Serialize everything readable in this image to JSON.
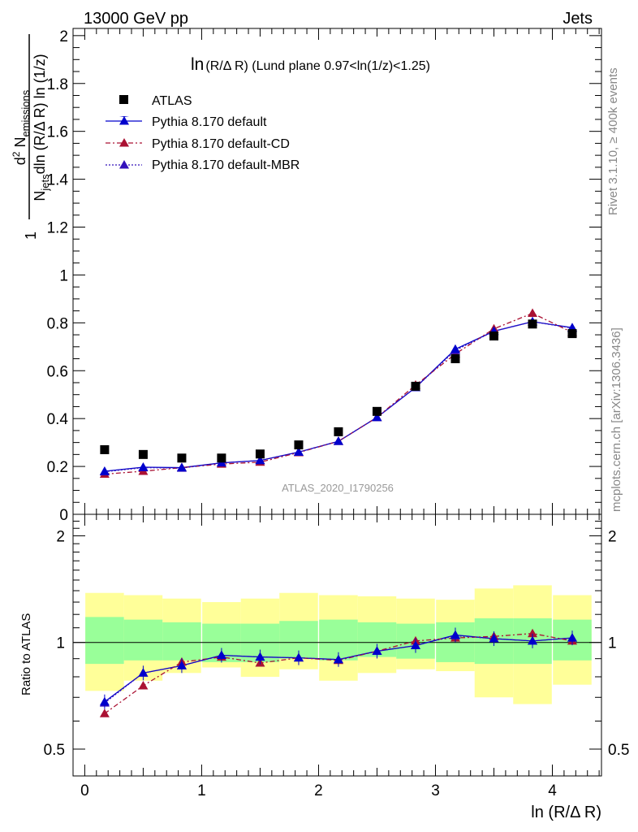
{
  "header": {
    "left": "13000 GeV pp",
    "right": "Jets"
  },
  "side_labels": {
    "top": "Rivet 3.1.10, ≥ 400k events",
    "bottom": "mcplots.cern.ch [arXiv:1306.3436]"
  },
  "watermark": "ATLAS_2020_I1790256",
  "xlabel": "ln (R/Δ R)",
  "colors": {
    "data": "#000000",
    "default": "#0000cc",
    "cd": "#aa1133",
    "mbr": "#3311bb",
    "band_yellow": "#ffff99",
    "band_green": "#99ff99"
  },
  "chart_data": [
    {
      "type": "scatter",
      "panel": "main",
      "title_main": "ln",
      "title_rest": "(R/Δ R) (Lund plane 0.97<ln(1/z)<1.25)",
      "ylabel": "1/N_jets dln (R/Δ R) ln (1/z) · d² N_emissions",
      "xlim": [
        -0.1,
        4.42
      ],
      "ylim": [
        0,
        2.03
      ],
      "y_ticks": [
        "0",
        "0.2",
        "0.4",
        "0.6",
        "0.8",
        "1",
        "1.2",
        "1.4",
        "1.6",
        "1.8",
        "2"
      ],
      "legend_position": "top-left",
      "x": [
        0.17,
        0.5,
        0.83,
        1.17,
        1.5,
        1.83,
        2.17,
        2.5,
        2.83,
        3.17,
        3.5,
        3.83,
        4.17
      ],
      "series": [
        {
          "name": "ATLAS",
          "values": [
            0.27,
            0.25,
            0.235,
            0.235,
            0.252,
            0.29,
            0.345,
            0.43,
            0.535,
            0.65,
            0.745,
            0.795,
            0.755
          ]
        },
        {
          "name": "Pythia 8.170 default",
          "values": [
            0.18,
            0.197,
            0.195,
            0.215,
            0.225,
            0.26,
            0.305,
            0.405,
            0.53,
            0.69,
            0.765,
            0.805,
            0.78
          ]
        },
        {
          "name": "Pythia 8.170 default-CD",
          "values": [
            0.168,
            0.18,
            0.195,
            0.21,
            0.218,
            0.258,
            0.305,
            0.405,
            0.54,
            0.67,
            0.775,
            0.84,
            0.76
          ]
        },
        {
          "name": "Pythia 8.170 default-MBR",
          "values": [
            0.178,
            0.195,
            0.193,
            0.215,
            0.225,
            0.26,
            0.305,
            0.405,
            0.53,
            0.685,
            0.765,
            0.805,
            0.778
          ]
        }
      ]
    },
    {
      "type": "scatter",
      "panel": "ratio",
      "ylabel": "Ratio to ATLAS",
      "xlim": [
        -0.1,
        4.42
      ],
      "ylim": [
        0.42,
        2.3
      ],
      "x_ticks": [
        "0",
        "1",
        "2",
        "3",
        "4"
      ],
      "y_ticks": [
        "0.5",
        "1",
        "2"
      ],
      "x": [
        0.17,
        0.5,
        0.83,
        1.17,
        1.5,
        1.83,
        2.17,
        2.5,
        2.83,
        3.17,
        3.5,
        3.83,
        4.17
      ],
      "band_yellow": [
        [
          0.73,
          1.38
        ],
        [
          0.78,
          1.36
        ],
        [
          0.82,
          1.33
        ],
        [
          0.85,
          1.3
        ],
        [
          0.8,
          1.33
        ],
        [
          0.84,
          1.38
        ],
        [
          0.78,
          1.36
        ],
        [
          0.82,
          1.35
        ],
        [
          0.84,
          1.33
        ],
        [
          0.83,
          1.32
        ],
        [
          0.7,
          1.42
        ],
        [
          0.67,
          1.45
        ],
        [
          0.76,
          1.36
        ]
      ],
      "band_green": [
        [
          0.87,
          1.18
        ],
        [
          0.89,
          1.16
        ],
        [
          0.89,
          1.14
        ],
        [
          0.88,
          1.13
        ],
        [
          0.88,
          1.13
        ],
        [
          0.9,
          1.15
        ],
        [
          0.89,
          1.16
        ],
        [
          0.91,
          1.14
        ],
        [
          0.9,
          1.13
        ],
        [
          0.88,
          1.14
        ],
        [
          0.87,
          1.17
        ],
        [
          0.87,
          1.17
        ],
        [
          0.89,
          1.16
        ]
      ],
      "series": [
        {
          "name": "Pythia 8.170 default",
          "values": [
            0.68,
            0.82,
            0.86,
            0.92,
            0.91,
            0.905,
            0.895,
            0.945,
            0.98,
            1.05,
            1.025,
            1.01,
            1.03
          ]
        },
        {
          "name": "Pythia 8.170 default-CD",
          "values": [
            0.63,
            0.755,
            0.88,
            0.91,
            0.875,
            0.905,
            0.89,
            0.945,
            1.01,
            1.03,
            1.04,
            1.06,
            1.01
          ]
        },
        {
          "name": "Pythia 8.170 default-MBR",
          "values": [
            0.675,
            0.82,
            0.86,
            0.92,
            0.91,
            0.905,
            0.895,
            0.945,
            0.98,
            1.045,
            1.025,
            1.01,
            1.03
          ]
        }
      ]
    }
  ]
}
